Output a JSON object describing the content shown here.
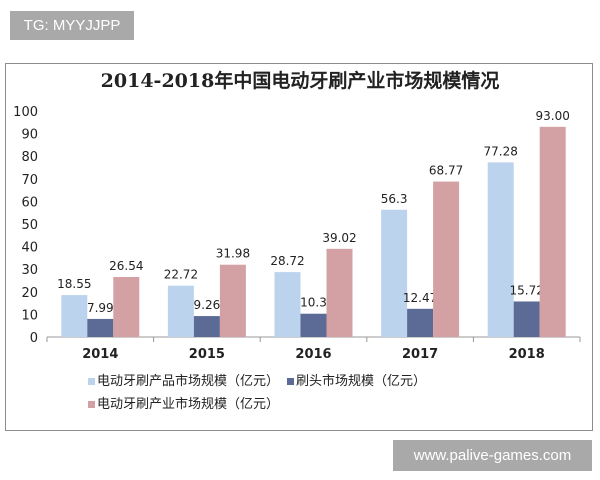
{
  "watermarks": {
    "top": "TG: MYYJJPP",
    "bottom": "www.palive-games.com"
  },
  "chart_data": {
    "type": "bar",
    "title": "2014-2018年中国电动牙刷产业市场规模情况",
    "xlabel": "",
    "ylabel": "",
    "ylim": [
      0,
      100
    ],
    "yticks": [
      "0",
      "10",
      "20",
      "30",
      "40",
      "50",
      "60",
      "70",
      "80",
      "90",
      "100"
    ],
    "categories": [
      "2014",
      "2015",
      "2016",
      "2017",
      "2018"
    ],
    "grid": false,
    "legend_position": "bottom",
    "series": [
      {
        "name": "电动牙刷产品市场规模（亿元）",
        "color": "#bcd3ee",
        "values": [
          18.55,
          22.72,
          28.72,
          56.3,
          77.28
        ],
        "labels": [
          "18.55",
          "22.72",
          "28.72",
          "56.3",
          "77.28"
        ]
      },
      {
        "name": "刷头市场规模（亿元）",
        "color": "#5b6b96",
        "values": [
          7.99,
          9.26,
          10.3,
          12.47,
          15.72
        ],
        "labels": [
          "7.99",
          "9.26",
          "10.3",
          "12.47",
          "15.72"
        ]
      },
      {
        "name": "电动牙刷产业市场规模（亿元）",
        "color": "#d3a1a4",
        "values": [
          26.54,
          31.98,
          39.02,
          68.77,
          93.0
        ],
        "labels": [
          "26.54",
          "31.98",
          "39.02",
          "68.77",
          "93.00"
        ]
      }
    ]
  }
}
